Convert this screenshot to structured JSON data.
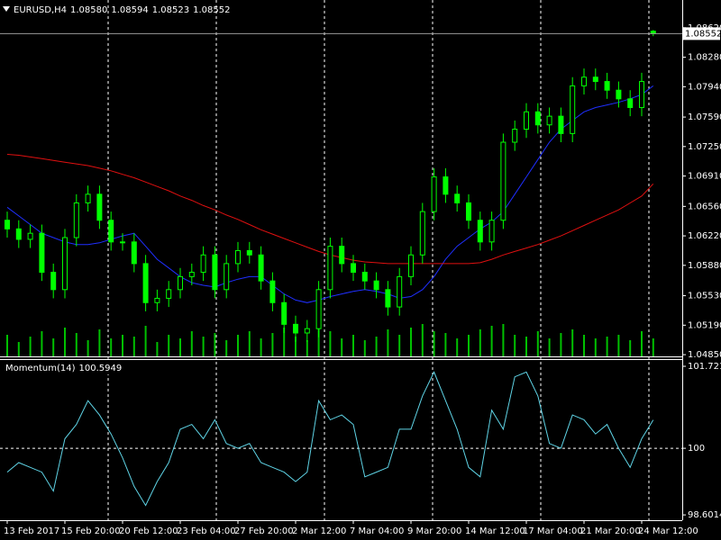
{
  "chart_data": [
    {
      "type": "candlestick",
      "title": "EURUSD,H4",
      "info_labels": [
        "1.08580",
        "1.08594",
        "1.08523",
        "1.08552"
      ],
      "categories": [
        "13 Feb 2017",
        null,
        null,
        null,
        null,
        "15 Feb 20:00",
        null,
        null,
        null,
        null,
        "20 Feb 12:00",
        null,
        null,
        null,
        null,
        "23 Feb 04:00",
        null,
        null,
        null,
        null,
        "27 Feb 20:00",
        null,
        null,
        null,
        null,
        "2 Mar 12:00",
        null,
        null,
        null,
        null,
        "7 Mar 04:00",
        null,
        null,
        null,
        null,
        "9 Mar 20:00",
        null,
        null,
        null,
        null,
        "14 Mar 12:00",
        null,
        null,
        null,
        null,
        "17 Mar 04:00",
        null,
        null,
        null,
        null,
        "21 Mar 20:00",
        null,
        null,
        null,
        null,
        "24 Mar 12:00",
        null
      ],
      "open": [
        1.064,
        1.063,
        1.0618,
        1.0625,
        1.058,
        1.056,
        1.062,
        1.066,
        1.067,
        1.064,
        1.0615,
        1.0615,
        1.059,
        1.0545,
        1.055,
        1.056,
        1.0575,
        1.058,
        1.06,
        1.056,
        1.059,
        1.0605,
        1.06,
        1.057,
        1.0545,
        1.052,
        1.051,
        1.0515,
        1.056,
        1.061,
        1.059,
        1.058,
        1.057,
        1.056,
        1.054,
        1.0575,
        1.06,
        1.065,
        1.069,
        1.067,
        1.066,
        1.064,
        1.0615,
        1.064,
        1.073,
        1.0745,
        1.0765,
        1.075,
        1.076,
        1.074,
        1.0795,
        1.0805,
        1.08,
        1.079,
        1.078,
        1.077,
        1.0858
      ],
      "high": [
        1.065,
        1.064,
        1.0635,
        1.0635,
        1.059,
        1.063,
        1.067,
        1.068,
        1.068,
        1.065,
        1.0625,
        1.0625,
        1.06,
        1.056,
        1.057,
        1.0585,
        1.059,
        1.061,
        1.061,
        1.06,
        1.0615,
        1.0615,
        1.061,
        1.058,
        1.0555,
        1.053,
        1.0525,
        1.057,
        1.062,
        1.062,
        1.06,
        1.059,
        1.058,
        1.057,
        1.0585,
        1.061,
        1.066,
        1.07,
        1.07,
        1.068,
        1.067,
        1.065,
        1.065,
        1.074,
        1.0755,
        1.0775,
        1.0775,
        1.077,
        1.077,
        1.0805,
        1.0815,
        1.0815,
        1.081,
        1.08,
        1.079,
        1.081,
        1.08594
      ],
      "low": [
        1.062,
        1.0608,
        1.0608,
        1.057,
        1.055,
        1.055,
        1.061,
        1.065,
        1.063,
        1.0605,
        1.0605,
        1.058,
        1.0535,
        1.0535,
        1.054,
        1.055,
        1.0565,
        1.057,
        1.055,
        1.055,
        1.058,
        1.059,
        1.056,
        1.0535,
        1.051,
        1.05,
        1.05,
        1.0505,
        1.055,
        1.058,
        1.057,
        1.056,
        1.055,
        1.053,
        1.053,
        1.0565,
        1.059,
        1.064,
        1.066,
        1.065,
        1.063,
        1.0605,
        1.0605,
        1.063,
        1.072,
        1.0735,
        1.074,
        1.074,
        1.073,
        1.073,
        1.0785,
        1.079,
        1.078,
        1.077,
        1.076,
        1.076,
        1.08523
      ],
      "close": [
        1.063,
        1.0618,
        1.0625,
        1.058,
        1.056,
        1.062,
        1.066,
        1.067,
        1.064,
        1.0615,
        1.0615,
        1.059,
        1.0545,
        1.055,
        1.056,
        1.0575,
        1.058,
        1.06,
        1.056,
        1.059,
        1.0605,
        1.06,
        1.057,
        1.0545,
        1.052,
        1.051,
        1.0515,
        1.056,
        1.061,
        1.059,
        1.058,
        1.057,
        1.056,
        1.054,
        1.0575,
        1.06,
        1.065,
        1.069,
        1.067,
        1.066,
        1.064,
        1.0615,
        1.064,
        1.073,
        1.0745,
        1.0765,
        1.075,
        1.076,
        1.074,
        1.0795,
        1.0805,
        1.08,
        1.079,
        1.078,
        1.077,
        1.08,
        1.08552
      ],
      "volumes": [
        6000,
        4000,
        5500,
        7000,
        5000,
        8000,
        6500,
        4500,
        7500,
        5000,
        6000,
        5500,
        8500,
        4000,
        6000,
        5000,
        7000,
        5500,
        6500,
        4500,
        6000,
        7000,
        5000,
        6500,
        8000,
        5500,
        4500,
        9000,
        7000,
        5000,
        6000,
        4500,
        5500,
        7500,
        6000,
        8000,
        9000,
        7000,
        6500,
        5000,
        6000,
        7500,
        8500,
        9000,
        6000,
        5500,
        7000,
        5000,
        6500,
        7500,
        6000,
        5000,
        5500,
        6000,
        4500,
        7000,
        5000
      ],
      "overlays": [
        {
          "color": "#1f2fff",
          "values": [
            1.0655,
            1.0645,
            1.0635,
            1.0625,
            1.062,
            1.0615,
            1.0612,
            1.0612,
            1.0614,
            1.0618,
            1.0622,
            1.0625,
            1.061,
            1.0595,
            1.0585,
            1.0575,
            1.0568,
            1.0565,
            1.0563,
            1.0568,
            1.0572,
            1.0575,
            1.0575,
            1.0565,
            1.0555,
            1.0548,
            1.0545,
            1.0548,
            1.0552,
            1.0555,
            1.0558,
            1.056,
            1.0558,
            1.0555,
            1.055,
            1.0552,
            1.056,
            1.0575,
            1.0595,
            1.061,
            1.062,
            1.063,
            1.0638,
            1.065,
            1.067,
            1.069,
            1.071,
            1.073,
            1.0745,
            1.0755,
            1.0765,
            1.077,
            1.0773,
            1.0776,
            1.078,
            1.0785,
            1.0795
          ]
        },
        {
          "color": "#e01010",
          "values": [
            1.0716,
            1.0715,
            1.0713,
            1.0711,
            1.0709,
            1.0707,
            1.0705,
            1.0703,
            1.07,
            1.0697,
            1.0693,
            1.0689,
            1.0684,
            1.0679,
            1.0674,
            1.0668,
            1.0663,
            1.0657,
            1.0652,
            1.0646,
            1.0641,
            1.0635,
            1.0629,
            1.0624,
            1.0619,
            1.0614,
            1.0609,
            1.0604,
            1.06,
            1.0597,
            1.0594,
            1.0592,
            1.0591,
            1.059,
            1.059,
            1.059,
            1.059,
            1.059,
            1.059,
            1.059,
            1.059,
            1.0591,
            1.0595,
            1.06,
            1.0604,
            1.0608,
            1.0612,
            1.0617,
            1.0622,
            1.0628,
            1.0634,
            1.064,
            1.0646,
            1.0652,
            1.066,
            1.0668,
            1.0682
          ]
        }
      ],
      "color": "#00ff00",
      "volume_color": "#00c000",
      "last_price": {
        "value": 1.08552,
        "label": "1.08552"
      },
      "ylim": [
        1.0483,
        1.0894
      ],
      "yticks": [
        {
          "value": 1.0862,
          "label": "1.08620"
        },
        {
          "value": 1.0828,
          "label": "1.08280"
        },
        {
          "value": 1.0794,
          "label": "1.07940"
        },
        {
          "value": 1.0759,
          "label": "1.07590"
        },
        {
          "value": 1.0725,
          "label": "1.07250"
        },
        {
          "value": 1.0691,
          "label": "1.06910"
        },
        {
          "value": 1.0656,
          "label": "1.06560"
        },
        {
          "value": 1.0622,
          "label": "1.06220"
        },
        {
          "value": 1.0588,
          "label": "1.05880"
        },
        {
          "value": 1.0553,
          "label": "1.05530"
        },
        {
          "value": 1.0519,
          "label": "1.05190"
        },
        {
          "value": 1.0485,
          "label": "1.04850"
        }
      ]
    },
    {
      "type": "line",
      "title": "Momentum(14)",
      "color": "#5fd4e6",
      "values": [
        99.5,
        99.7,
        99.6,
        99.5,
        99.1,
        100.2,
        100.5,
        101.0,
        100.7,
        100.3,
        99.8,
        99.2,
        98.8,
        99.3,
        99.7,
        100.4,
        100.5,
        100.2,
        100.6,
        100.1,
        100.0,
        100.1,
        99.7,
        99.6,
        99.5,
        99.3,
        99.5,
        101.0,
        100.6,
        100.7,
        100.5,
        99.4,
        99.5,
        99.6,
        100.4,
        100.4,
        101.1,
        101.6,
        101.0,
        100.4,
        99.6,
        99.4,
        100.8,
        100.4,
        101.5,
        101.6,
        101.1,
        100.1,
        100.0,
        100.7,
        100.6,
        100.3,
        100.5,
        100.0,
        99.6,
        100.2,
        100.5949
      ],
      "ylim": [
        98.49,
        101.854
      ],
      "yticks": [
        101.7216,
        100,
        98.6014
      ],
      "levels": [
        100
      ]
    }
  ]
}
